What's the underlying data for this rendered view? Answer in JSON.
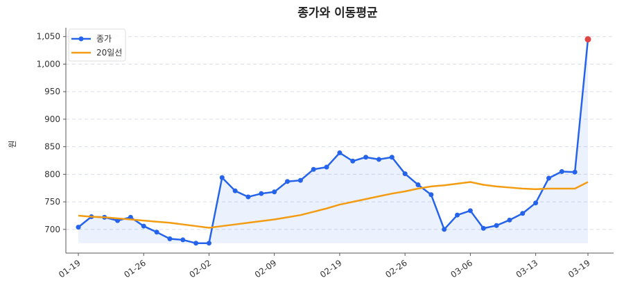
{
  "chart_data": {
    "type": "line",
    "title": "종가와 이동평균",
    "y_label": "원",
    "categories": [
      "01-19",
      null,
      null,
      null,
      null,
      "01-26",
      null,
      null,
      null,
      null,
      "02-02",
      null,
      null,
      null,
      null,
      "02-09",
      null,
      null,
      null,
      null,
      "02-19",
      null,
      null,
      null,
      null,
      "02-26",
      null,
      null,
      null,
      null,
      "03-06",
      null,
      null,
      null,
      null,
      "03-13",
      null,
      null,
      null,
      "03-19"
    ],
    "series": [
      {
        "name": "종가",
        "color": "#2563eb",
        "markers": true,
        "fill": true,
        "last_point_color": "#e04545",
        "values": [
          704,
          723,
          722,
          716,
          722,
          706,
          695,
          683,
          681,
          675,
          675,
          794,
          770,
          759,
          765,
          768,
          787,
          789,
          809,
          813,
          839,
          824,
          831,
          827,
          831,
          801,
          781,
          763,
          700,
          726,
          734,
          702,
          707,
          717,
          729,
          748,
          793,
          805,
          804,
          1045
        ]
      },
      {
        "name": "20일선",
        "color": "#f39c12",
        "markers": false,
        "fill": false,
        "values": [
          725,
          723,
          722,
          720,
          718,
          716,
          714,
          712,
          709,
          706,
          703,
          706,
          709,
          712,
          715,
          718,
          722,
          726,
          732,
          738,
          745,
          750,
          755,
          760,
          765,
          769,
          774,
          778,
          780,
          783,
          786,
          781,
          778,
          776,
          774,
          773,
          774,
          774,
          774,
          786
        ]
      }
    ],
    "ylim": [
      657,
      1066
    ],
    "yticks": [
      700,
      750,
      800,
      850,
      900,
      950,
      {
        "value": 1000,
        "label": "1,000"
      },
      {
        "value": 1050,
        "label": "1,050"
      }
    ],
    "grid": true,
    "legend": "upper-left"
  }
}
